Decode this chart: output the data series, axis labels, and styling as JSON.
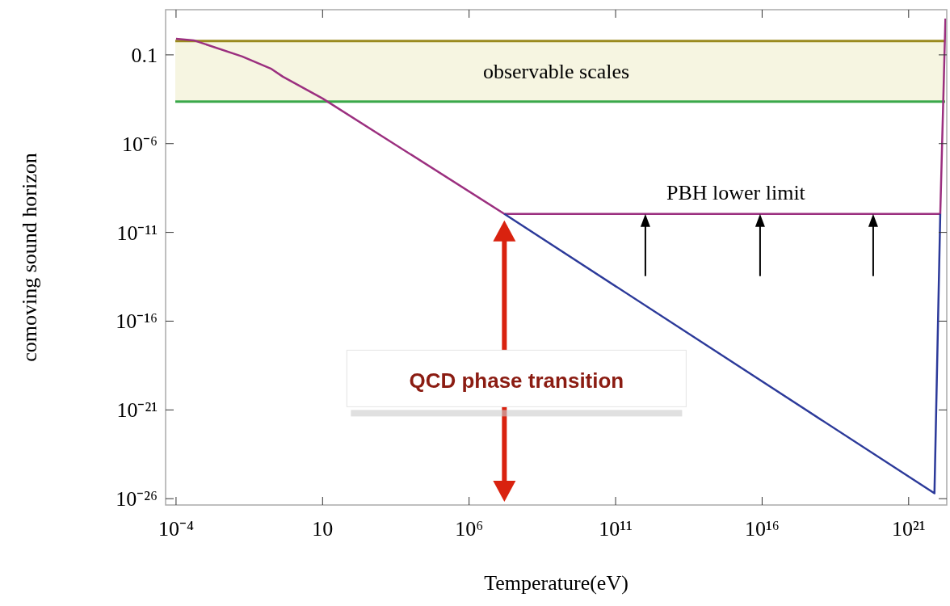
{
  "chart_data": {
    "type": "line",
    "xlabel": "Temperature(eV)",
    "ylabel": "comoving sound horizon",
    "log": "xy",
    "grid": false,
    "marker": "none",
    "line_style": "solid",
    "xlim": [
      4.4e-05,
      2e+22
    ],
    "ylim": [
      4.4e-27,
      35
    ],
    "xticks": [
      {
        "value": 0.0001,
        "label": "10⁻⁴"
      },
      10,
      {
        "value": 1000000.0,
        "label": "10⁶"
      },
      {
        "value": 100000000000.0,
        "label": "10¹¹"
      },
      {
        "value": 1e+16,
        "label": "10¹⁶"
      },
      {
        "value": 1e+21,
        "label": "10²¹"
      }
    ],
    "yticks": [
      0.1,
      {
        "value": 1e-06,
        "label": "10⁻⁶"
      },
      {
        "value": 1e-11,
        "label": "10⁻¹¹"
      },
      {
        "value": 1e-16,
        "label": "10⁻¹⁶"
      },
      {
        "value": 1e-21,
        "label": "10⁻²¹"
      },
      {
        "value": 1e-26,
        "label": "10⁻²⁶"
      }
    ],
    "series": [
      {
        "color": "#9b2f7f",
        "x": [
          0.0001,
          0.0004,
          0.018,
          0.17,
          0.44,
          10,
          16000000.0,
          1.2e+22,
          1.8e+22
        ],
        "values": [
          0.8,
          0.66,
          0.081,
          0.017,
          0.0059,
          0.00035,
          1.1e-10,
          1.1e-10,
          11
        ]
      },
      {
        "color": "#2c3a9a",
        "x": [
          16000000.0,
          7.6e+21,
          1.2e+22
        ],
        "values": [
          1.1e-10,
          2e-26,
          1.1e-10
        ]
      }
    ],
    "bands": [
      {
        "axis": "y",
        "from": 0.00023,
        "to": 0.6,
        "label": "observable scales",
        "color": "#f6f5e1"
      }
    ],
    "ref_lines": [
      {
        "axis": "y",
        "value": 0.6,
        "color": "#9a8a1e"
      },
      {
        "axis": "y",
        "value": 0.00023,
        "color": "#3aa84a"
      }
    ],
    "annotations": [
      "PBH lower limit",
      "QCD phase transition"
    ]
  }
}
